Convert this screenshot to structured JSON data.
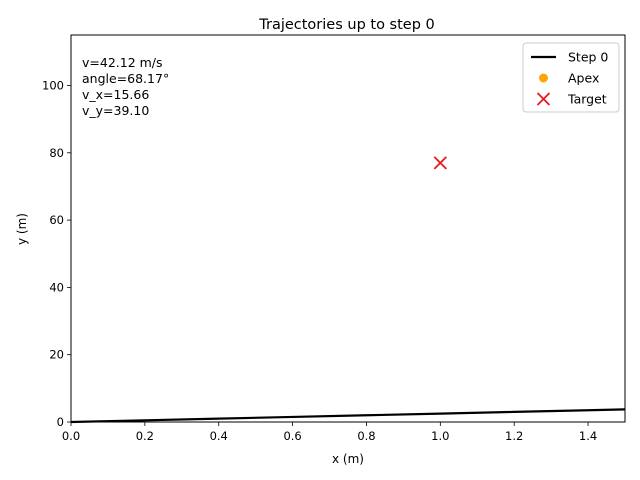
{
  "chart_data": {
    "type": "line",
    "title": "Trajectories up to step 0",
    "xlabel": "x (m)",
    "ylabel": "y (m)",
    "xlim": [
      0,
      1.5
    ],
    "ylim": [
      0,
      115
    ],
    "grid": false,
    "legend_position": "top-right",
    "x_ticks": [
      0.0,
      0.2,
      0.4,
      0.6,
      0.8,
      1.0,
      1.2,
      1.4
    ],
    "x_tick_labels": [
      "0.0",
      "0.2",
      "0.4",
      "0.6",
      "0.8",
      "1.0",
      "1.2",
      "1.4"
    ],
    "y_ticks": [
      0,
      20,
      40,
      60,
      80,
      100
    ],
    "y_tick_labels": [
      "0",
      "20",
      "40",
      "60",
      "80",
      "100"
    ],
    "annotation_lines": [
      "v=42.12 m/s",
      "angle=68.17°",
      "v_x=15.66",
      "v_y=39.10"
    ],
    "series": [
      {
        "name": "Step 0",
        "kind": "line",
        "color": "#000000",
        "x": [
          0.0,
          0.2,
          0.4,
          0.6,
          0.8,
          1.0,
          1.2,
          1.4,
          1.5
        ],
        "y": [
          0.0,
          0.5,
          1.0,
          1.5,
          2.0,
          2.5,
          3.0,
          3.5,
          3.74
        ]
      },
      {
        "name": "Apex",
        "kind": "scatter",
        "color": "#ffa500",
        "marker": "circle",
        "x": [],
        "y": []
      },
      {
        "name": "Target",
        "kind": "scatter",
        "color": "#e41a1c",
        "marker": "x",
        "x": [
          1.0
        ],
        "y": [
          77
        ]
      }
    ]
  }
}
